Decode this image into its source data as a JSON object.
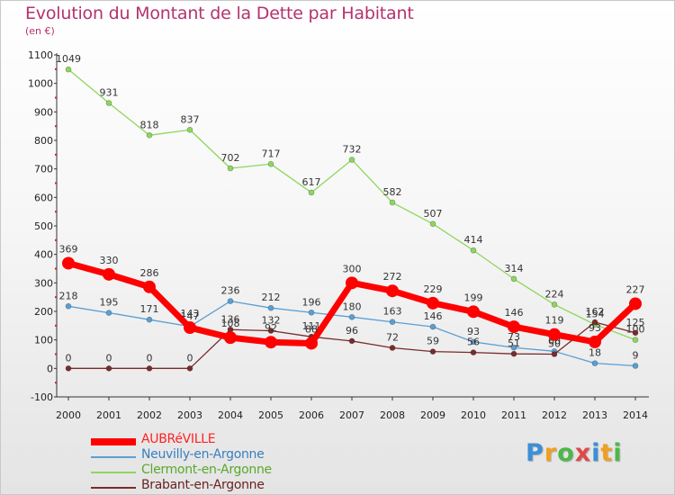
{
  "title": "Evolution du Montant de la Dette par Habitant",
  "unit_label": "(en €)",
  "logo": {
    "text": "Proxiti",
    "letters": [
      {
        "ch": "P",
        "color": "#3a8fd8"
      },
      {
        "ch": "r",
        "color": "#f0a020"
      },
      {
        "ch": "o",
        "color": "#4cb848"
      },
      {
        "ch": "x",
        "color": "#e04848"
      },
      {
        "ch": "i",
        "color": "#3a8fd8"
      },
      {
        "ch": "t",
        "color": "#f0a020"
      },
      {
        "ch": "i",
        "color": "#4cb848"
      }
    ]
  },
  "chart_data": {
    "type": "line",
    "title": "Evolution du Montant de la Dette par Habitant",
    "subtitle": "(en €)",
    "xlabel": "",
    "ylabel": "",
    "ylim": [
      -100,
      1100
    ],
    "yticks": [
      -100,
      0,
      100,
      200,
      300,
      400,
      500,
      600,
      700,
      800,
      900,
      1000,
      1100
    ],
    "x": [
      2000,
      2001,
      2002,
      2003,
      2004,
      2005,
      2006,
      2007,
      2008,
      2009,
      2010,
      2011,
      2012,
      2013,
      2014
    ],
    "grid": false,
    "legend_position": "bottom-left",
    "series": [
      {
        "name": "Clermont-en-Argonne",
        "color": "#8ed65e",
        "values": [
          1049,
          931,
          818,
          837,
          702,
          717,
          617,
          732,
          582,
          507,
          414,
          314,
          224,
          154,
          100
        ],
        "labels": [
          "1049",
          "931",
          "818",
          "837",
          "702",
          "717",
          "617",
          "732",
          "582",
          "507",
          "414",
          "314",
          "224",
          "154",
          "100"
        ]
      },
      {
        "name": "Neuvilly-en-Argonne",
        "color": "#5a9fd4",
        "values": [
          218,
          195,
          171,
          147,
          236,
          212,
          196,
          180,
          163,
          146,
          93,
          73,
          60,
          18,
          9
        ],
        "labels": [
          "218",
          "195",
          "171",
          "147",
          "236",
          "212",
          "196",
          "180",
          "163",
          "146",
          "93",
          "73",
          "60",
          "18",
          "9"
        ]
      },
      {
        "name": "Brabant-en-Argonne",
        "color": "#7a2b2b",
        "values": [
          0,
          0,
          0,
          0,
          136,
          132,
          111,
          96,
          72,
          59,
          56,
          51,
          50,
          162,
          125
        ],
        "labels": [
          "0",
          "0",
          "0",
          "0",
          "136",
          "132",
          "111",
          "96",
          "72",
          "59",
          "56",
          "51",
          "50",
          "162",
          "125"
        ]
      },
      {
        "name": "AUBRéVILLE",
        "color": "#ff0000",
        "values": [
          369,
          330,
          286,
          143,
          108,
          92,
          88,
          300,
          272,
          229,
          199,
          146,
          119,
          93,
          227
        ],
        "labels": [
          "369",
          "330",
          "286",
          "143",
          "108",
          "92",
          "88",
          "300",
          "272",
          "229",
          "199",
          "146",
          "119",
          "93",
          "227"
        ]
      }
    ],
    "legend": [
      {
        "name": "AUBRéVILLE",
        "color": "#ff0000",
        "thick": true
      },
      {
        "name": "Neuvilly-en-Argonne",
        "color": "#5a9fd4",
        "thick": false
      },
      {
        "name": "Clermont-en-Argonne",
        "color": "#8ed65e",
        "thick": false
      },
      {
        "name": "Brabant-en-Argonne",
        "color": "#7a2b2b",
        "thick": false
      }
    ]
  }
}
